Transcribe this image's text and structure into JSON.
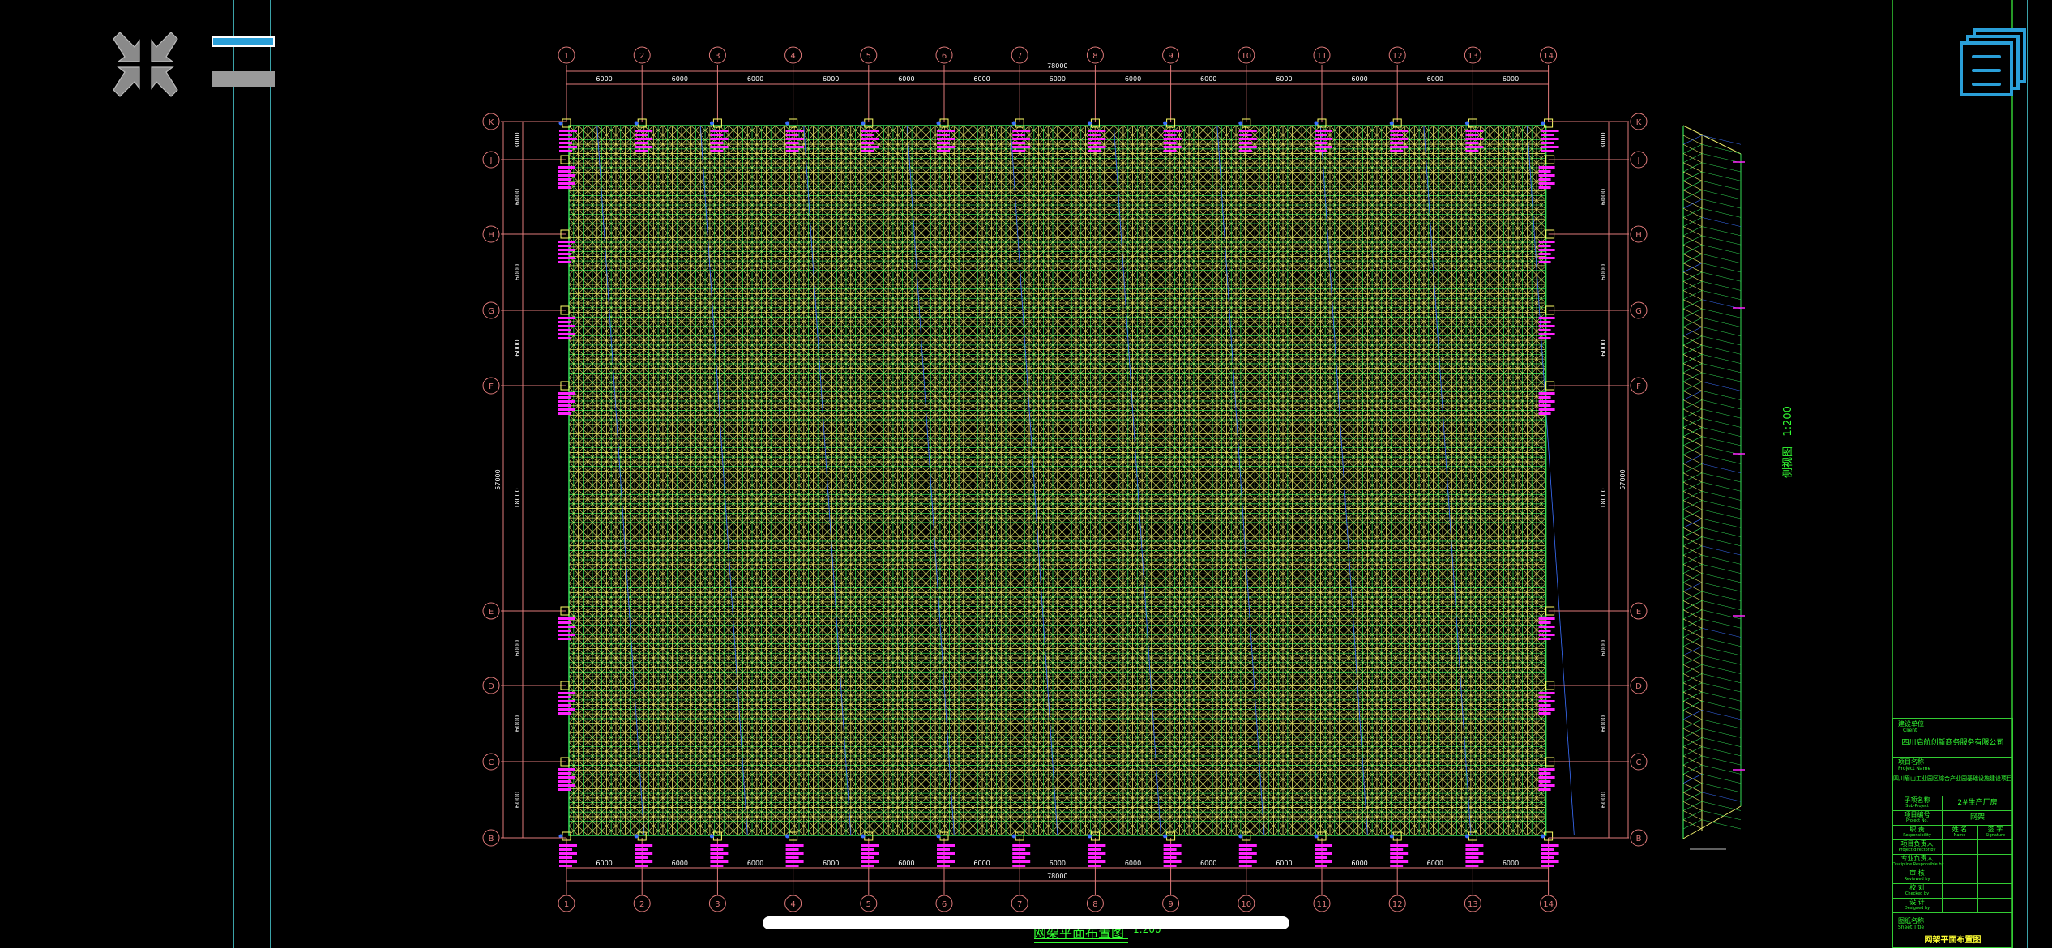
{
  "toolbar": {
    "collapse_icon": "collapse-arrows-icon",
    "layer_toggle_icon": "layer-bars-icon",
    "layouts_icon": "stacked-pages-icon"
  },
  "colors": {
    "axis": "#e07a7a",
    "mesh_upper": "#e8e86a",
    "mesh_lower": "#33dd55",
    "web": "#3a6fff",
    "support_text": "#ff22ff",
    "frame": "#33cc33",
    "viewport_line": "#4fd8e0",
    "accent": "#2a9fd8"
  },
  "drawing": {
    "column_axes": [
      "1",
      "2",
      "3",
      "4",
      "5",
      "6",
      "7",
      "8",
      "9",
      "10",
      "11",
      "12",
      "13",
      "14"
    ],
    "row_axes": [
      "K",
      "J",
      "H",
      "G",
      "F",
      "E",
      "D",
      "C",
      "B"
    ],
    "column_span_dims": [
      "6000",
      "6000",
      "6000",
      "6000",
      "6000",
      "6000",
      "6000",
      "6000",
      "6000",
      "6000",
      "6000",
      "6000",
      "6000"
    ],
    "column_total_dim": "78000",
    "row_span_dims": [
      "3000",
      "6000",
      "6000",
      "6000",
      "18000",
      "6000",
      "6000",
      "6000"
    ],
    "row_total_dim": "57000",
    "plan_title": "网架平面布置图",
    "plan_scale": "1:200",
    "side_title": "侧视图",
    "side_scale": "1:200"
  },
  "title_block": {
    "client_label": "建设单位",
    "client_label_en": "Client",
    "client_name": "四川启航创新商务服务有限公司",
    "project_label": "项目名称",
    "project_label_en": "Project Name",
    "project_name": "四川眉山工业园区综合产业园基础设施建设项目",
    "subproject_label": "子项名称",
    "subproject_label_en": "Sub-Project",
    "subproject_value": "2#生产厂房",
    "project_no_label": "项目编号",
    "project_no_label_en": "Project No.",
    "project_no_value": "网架",
    "resp_label": "职 责",
    "resp_label_en": "Responsibility",
    "name_label": "姓 名",
    "name_label_en": "Name",
    "sign_label": "签 字",
    "sign_label_en": "Signature",
    "rows": [
      {
        "label": "项目负责人",
        "label_en": "Project director by"
      },
      {
        "label": "专业负责人",
        "label_en": "Discipline Responsible by"
      },
      {
        "label": "审 核",
        "label_en": "Reviewed by"
      },
      {
        "label": "校 对",
        "label_en": "Checked by"
      },
      {
        "label": "设 计",
        "label_en": "Designed by"
      }
    ],
    "drawing_label": "图纸名称",
    "drawing_label_en": "Sheet Title",
    "drawing_name": "网架平面布置图"
  }
}
